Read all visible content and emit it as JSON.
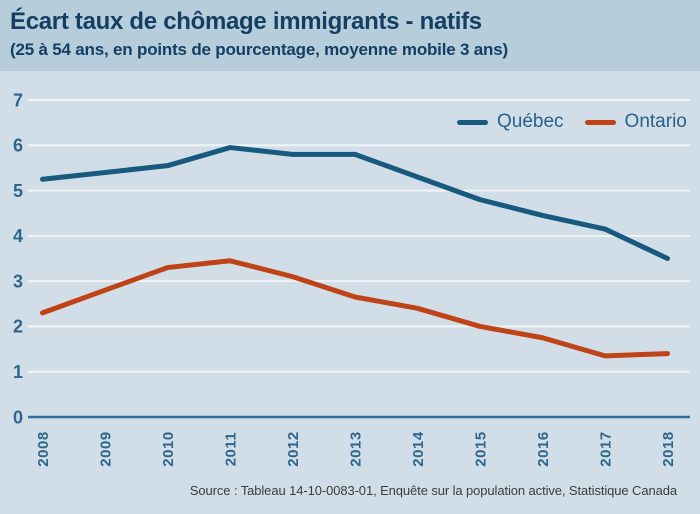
{
  "header": {
    "title": "Écart taux de chômage immigrants - natifs",
    "subtitle": "(25 à 54 ans, en points de pourcentage, moyenne mobile 3 ans)"
  },
  "source": "Source : Tableau 14-10-0083-01, Enquête sur la population active, Statistique Canada",
  "colors": {
    "header_bg": "#b6cedb",
    "chart_bg": "#d1dee7",
    "title_text": "#143f63",
    "tick_label": "#2e658c",
    "gridline": "#eef3f6",
    "axis_line": "#2e6da0",
    "legend_text": "#28618a",
    "source_text": "#3c3c3c"
  },
  "chart_data": {
    "type": "line",
    "title": "Écart taux de chômage immigrants - natifs",
    "subtitle": "(25 à 54 ans, en points de pourcentage, moyenne mobile 3 ans)",
    "x": [
      "2008",
      "2009",
      "2010",
      "2011",
      "2012",
      "2013",
      "2014",
      "2015",
      "2016",
      "2017",
      "2018"
    ],
    "series": [
      {
        "name": "Québec",
        "color": "#17597f",
        "values": [
          5.25,
          5.4,
          5.55,
          5.95,
          5.8,
          5.8,
          5.3,
          4.8,
          4.45,
          4.15,
          3.5
        ]
      },
      {
        "name": "Ontario",
        "color": "#c04317",
        "values": [
          2.3,
          2.8,
          3.3,
          3.45,
          3.1,
          2.65,
          2.4,
          2.0,
          1.75,
          1.35,
          1.4
        ]
      }
    ],
    "xlabel": "",
    "ylabel": "",
    "ylim": [
      0,
      7
    ],
    "yticks": [
      0,
      1,
      2,
      3,
      4,
      5,
      6,
      7
    ],
    "grid": true,
    "legend_position": "top-right"
  }
}
